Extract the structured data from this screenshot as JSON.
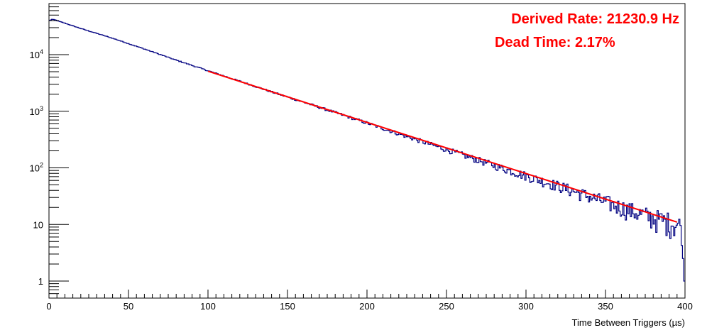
{
  "chart_data": {
    "type": "line",
    "title": "",
    "xlabel": "Time Between Triggers (µs)",
    "ylabel": "",
    "xlim": [
      0,
      400
    ],
    "ylim": [
      0.5,
      80000
    ],
    "y_scale": "log",
    "grid": false,
    "x_ticks": [
      {
        "value": 0,
        "label": "0"
      },
      {
        "value": 50,
        "label": "50"
      },
      {
        "value": 100,
        "label": "100"
      },
      {
        "value": 150,
        "label": "150"
      },
      {
        "value": 200,
        "label": "200"
      },
      {
        "value": 250,
        "label": "250"
      },
      {
        "value": 300,
        "label": "300"
      },
      {
        "value": 350,
        "label": "350"
      },
      {
        "value": 400,
        "label": "400"
      }
    ],
    "y_ticks": [
      {
        "value": 1,
        "base": "1",
        "exp": ""
      },
      {
        "value": 10,
        "base": "10",
        "exp": ""
      },
      {
        "value": 100,
        "base": "10",
        "exp": "2"
      },
      {
        "value": 1000,
        "base": "10",
        "exp": "3"
      },
      {
        "value": 10000,
        "base": "10",
        "exp": "4"
      }
    ],
    "series": [
      {
        "kind": "histogram",
        "color": "#000080",
        "x": [
          0,
          2,
          4,
          6,
          8,
          10,
          20,
          40,
          60,
          80,
          100,
          120,
          140,
          160,
          180,
          200,
          220,
          240,
          260,
          280,
          300,
          320,
          340,
          360,
          380,
          390,
          395,
          398,
          399
        ],
        "values": [
          40000,
          42000,
          41000,
          39000,
          37500,
          36000,
          29000,
          19500,
          12600,
          8000,
          5200,
          3400,
          2200,
          1450,
          950,
          620,
          400,
          260,
          170,
          110,
          72,
          48,
          31,
          20,
          13,
          11,
          10,
          9,
          1
        ]
      },
      {
        "kind": "fit",
        "color": "#ff0000",
        "x": [
          100,
          395
        ],
        "values": [
          5100,
          11
        ]
      }
    ],
    "annotations": [
      {
        "text": "Derived Rate: 21230.9 Hz",
        "color": "#ff0000"
      },
      {
        "text": "Dead Time: 2.17%",
        "color": "#ff0000"
      }
    ]
  }
}
